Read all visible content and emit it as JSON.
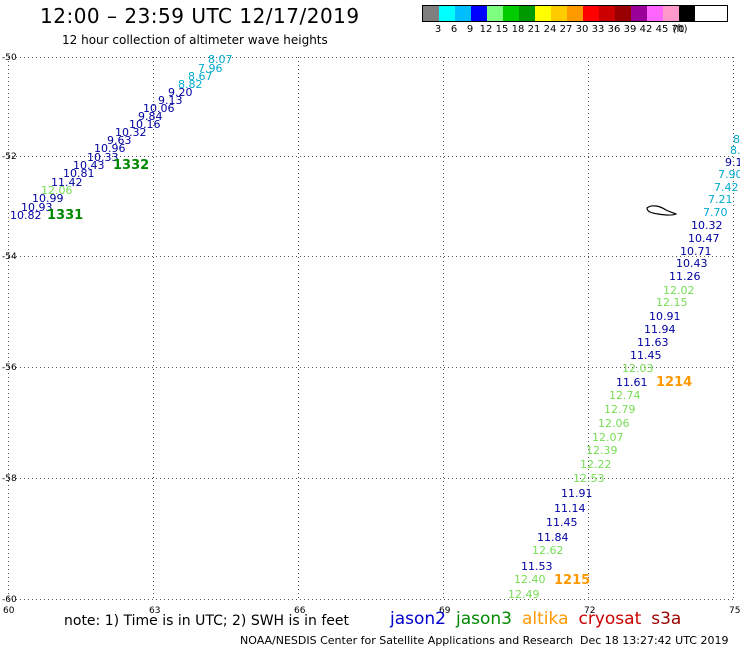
{
  "title": "12:00 – 23:59 UTC 12/17/2019",
  "subtitle": "12 hour collection of altimeter wave heights",
  "legend": {
    "labels": [
      "3",
      "6",
      "9",
      "12",
      "15",
      "18",
      "21",
      "24",
      "27",
      "30",
      "33",
      "36",
      "39",
      "42",
      "45",
      "70",
      "(ft)"
    ],
    "colors": [
      "#7f7f7f",
      "#00ffff",
      "#00bfff",
      "#0000ff",
      "#7fff7f",
      "#00cc00",
      "#009900",
      "#ffff00",
      "#ffcc00",
      "#ff9900",
      "#ff0000",
      "#cc0000",
      "#990000",
      "#990099",
      "#ff66ff",
      "#ff99cc",
      "#000000"
    ]
  },
  "axes": {
    "x_labels": [
      "60",
      "63",
      "66",
      "69",
      "72",
      "75"
    ],
    "y_labels": [
      "-50",
      "-52",
      "-54",
      "-56",
      "-58",
      "-60"
    ]
  },
  "satellite_colors": {
    "jason2": "#0000cc",
    "jason3": "#008800",
    "altika": "#ff9900",
    "cryosat": "#cc0000",
    "s3a": "#990000",
    "dark_blue": "#0000a0",
    "cyan": "#00aacc",
    "light_green": "#77dd55"
  },
  "tracks": [
    {
      "label": "8.07",
      "color": "cyan"
    },
    {
      "label": "7.96",
      "color": "cyan"
    },
    {
      "label": "8.67",
      "color": "cyan"
    },
    {
      "label": "8.82",
      "color": "cyan"
    },
    {
      "label": "9.20",
      "color": "dark_blue"
    },
    {
      "label": "9.13",
      "color": "dark_blue"
    },
    {
      "label": "10.06",
      "color": "dark_blue"
    },
    {
      "label": "9.84",
      "color": "dark_blue"
    },
    {
      "label": "10.16",
      "color": "dark_blue"
    },
    {
      "label": "10.32",
      "color": "dark_blue"
    },
    {
      "label": "9.63",
      "color": "dark_blue"
    },
    {
      "label": "10.96",
      "color": "dark_blue"
    },
    {
      "label": "10.33",
      "color": "dark_blue"
    },
    {
      "label": "10.43",
      "color": "dark_blue"
    },
    {
      "label": "10.81",
      "color": "dark_blue"
    },
    {
      "label": "11.42",
      "color": "dark_blue"
    },
    {
      "label": "12.06",
      "color": "light_green"
    },
    {
      "label": "10.99",
      "color": "dark_blue"
    },
    {
      "label": "10.93",
      "color": "dark_blue"
    },
    {
      "label": "10.82",
      "color": "dark_blue"
    },
    {
      "label": "8",
      "color": "cyan"
    },
    {
      "label": "8.",
      "color": "cyan"
    },
    {
      "label": "9.1",
      "color": "dark_blue"
    },
    {
      "label": "7.90",
      "color": "cyan"
    },
    {
      "label": "7.42",
      "color": "cyan"
    },
    {
      "label": "7.21",
      "color": "cyan"
    },
    {
      "label": "7.70",
      "color": "cyan"
    },
    {
      "label": "10.32",
      "color": "dark_blue"
    },
    {
      "label": "10.47",
      "color": "dark_blue"
    },
    {
      "label": "10.71",
      "color": "dark_blue"
    },
    {
      "label": "10.43",
      "color": "dark_blue"
    },
    {
      "label": "11.26",
      "color": "dark_blue"
    },
    {
      "label": "12.02",
      "color": "light_green"
    },
    {
      "label": "12.15",
      "color": "light_green"
    },
    {
      "label": "10.91",
      "color": "dark_blue"
    },
    {
      "label": "11.94",
      "color": "dark_blue"
    },
    {
      "label": "11.63",
      "color": "dark_blue"
    },
    {
      "label": "11.45",
      "color": "dark_blue"
    },
    {
      "label": "12.03",
      "color": "light_green"
    },
    {
      "label": "11.61",
      "color": "dark_blue"
    },
    {
      "label": "12.74",
      "color": "light_green"
    },
    {
      "label": "12.79",
      "color": "light_green"
    },
    {
      "label": "12.06",
      "color": "light_green"
    },
    {
      "label": "12.07",
      "color": "light_green"
    },
    {
      "label": "12.39",
      "color": "light_green"
    },
    {
      "label": "12.22",
      "color": "light_green"
    },
    {
      "label": "12.53",
      "color": "light_green"
    },
    {
      "label": "11.91",
      "color": "dark_blue"
    },
    {
      "label": "11.14",
      "color": "dark_blue"
    },
    {
      "label": "11.45",
      "color": "dark_blue"
    },
    {
      "label": "11.84",
      "color": "dark_blue"
    },
    {
      "label": "12.62",
      "color": "light_green"
    },
    {
      "label": "11.53",
      "color": "dark_blue"
    },
    {
      "label": "12.40",
      "color": "light_green"
    },
    {
      "label": "12.49",
      "color": "light_green"
    }
  ],
  "time_labels": [
    {
      "label": "1332",
      "color": "jason3"
    },
    {
      "label": "1331",
      "color": "jason3"
    },
    {
      "label": "1214",
      "color": "altika"
    },
    {
      "label": "1215",
      "color": "altika"
    }
  ],
  "note": "note:  1) Time is in UTC;  2) SWH is in feet",
  "satellites": [
    "jason2",
    "jason3",
    "altika",
    "cryosat",
    "s3a"
  ],
  "footer": "NOAA/NESDIS Center for Satellite Applications and Research",
  "footer_timestamp": "Dec 18 13:27:42 UTC 2019"
}
